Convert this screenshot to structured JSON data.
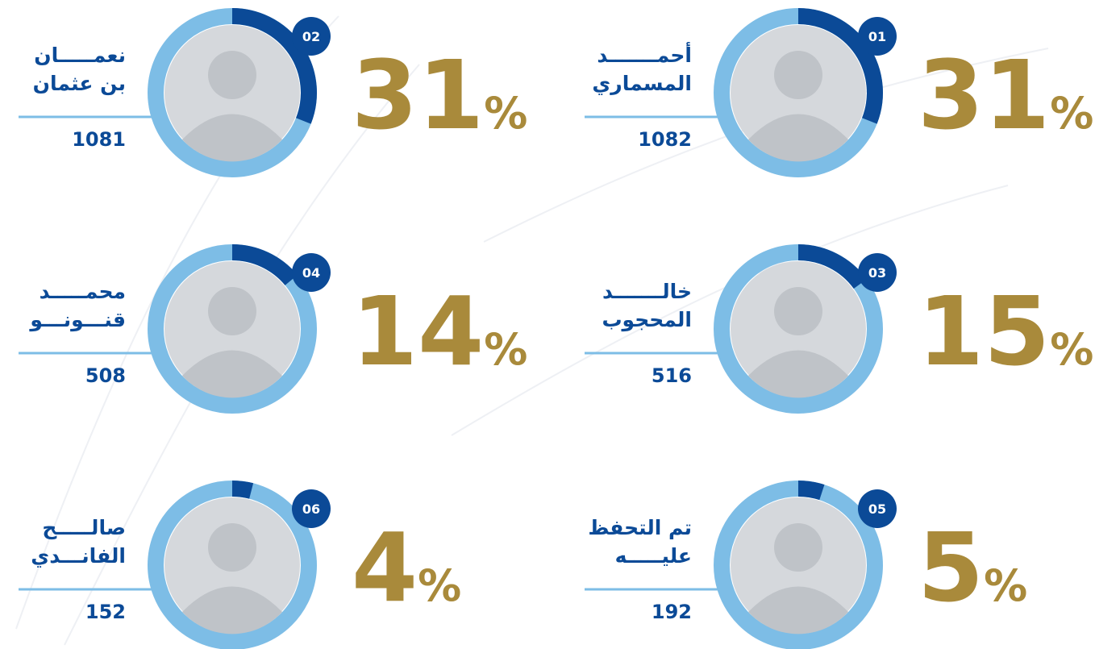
{
  "unit": "%",
  "items": [
    {
      "rank": "01",
      "name": [
        "أحمـــــــد",
        "المسماري"
      ],
      "votes": 1082,
      "percent": 31
    },
    {
      "rank": "02",
      "name": [
        "نعمـــــان",
        "بن عثمان"
      ],
      "votes": 1081,
      "percent": 31
    },
    {
      "rank": "03",
      "name": [
        "خالـــــــد",
        "المحجوب"
      ],
      "votes": 516,
      "percent": 15
    },
    {
      "rank": "04",
      "name": [
        "محمـــــد",
        "قنـــونـــو"
      ],
      "votes": 508,
      "percent": 14
    },
    {
      "rank": "05",
      "name": [
        "تم التحفظ",
        "عليـــــه"
      ],
      "votes": 192,
      "percent": 5
    },
    {
      "rank": "06",
      "name": [
        "صالـــــح",
        "الفانـــدي"
      ],
      "votes": 152,
      "percent": 4
    }
  ]
}
